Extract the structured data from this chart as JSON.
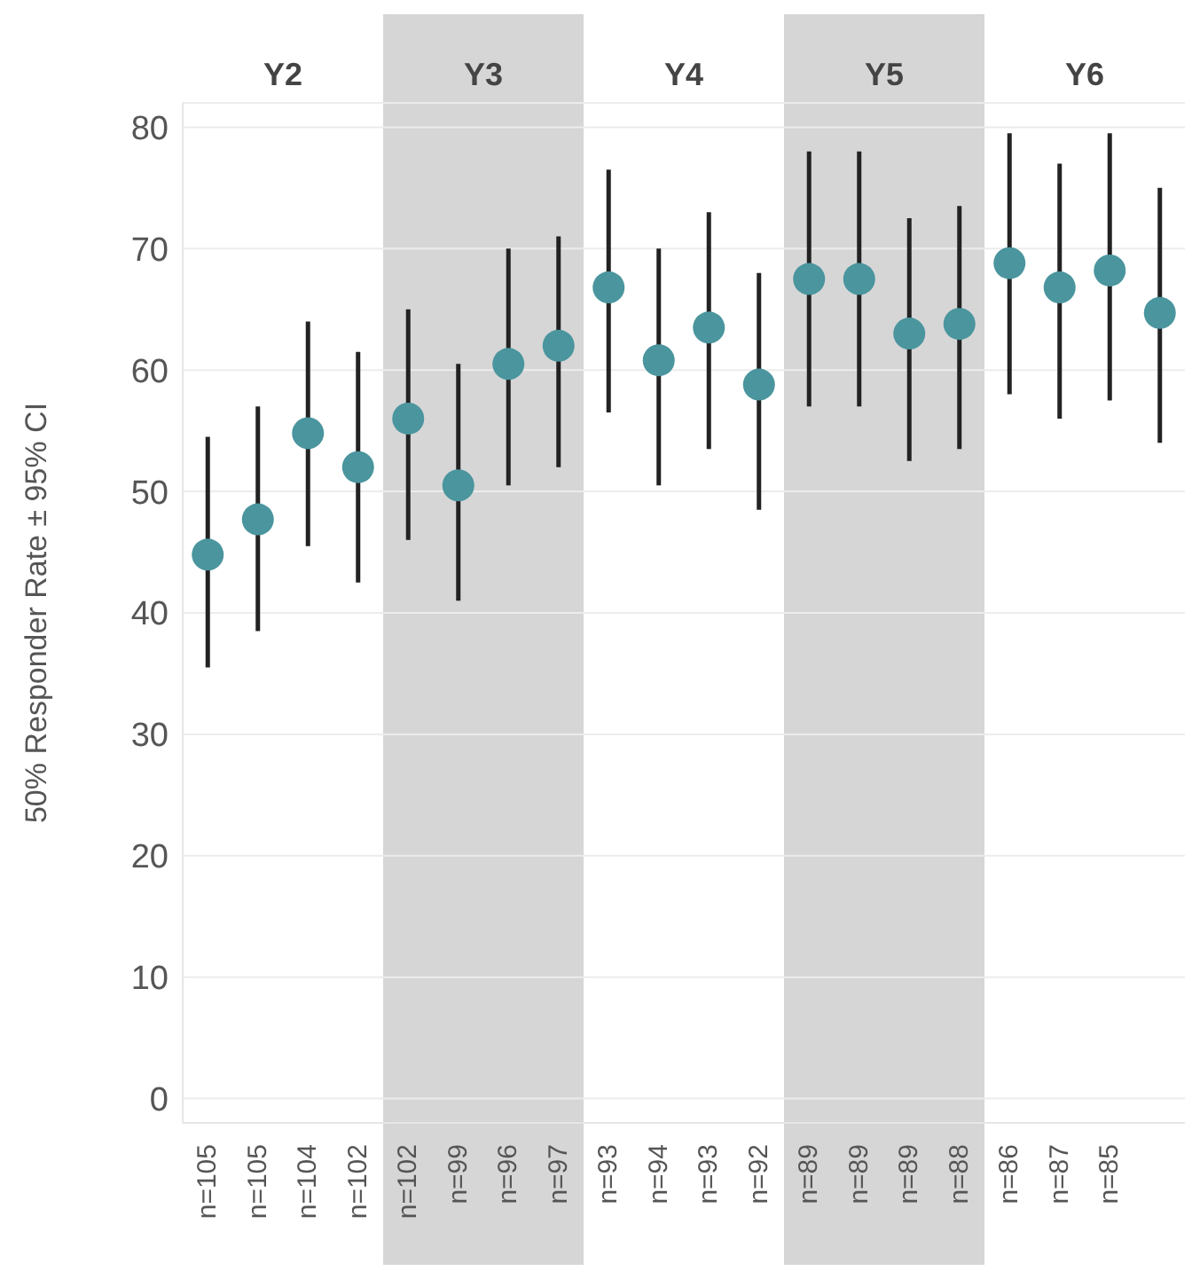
{
  "chart_data": {
    "type": "scatter",
    "ylabel": "50% Responder Rate ± 95% CI",
    "annotations": [
      "Y2",
      "Y3",
      "Y4",
      "Y5",
      "Y6"
    ],
    "categories": [
      "n=105",
      "n=105",
      "n=104",
      "n=102",
      "n=102",
      "n=99",
      "n=96",
      "n=97",
      "n=93",
      "n=94",
      "n=93",
      "n=92",
      "n=89",
      "n=89",
      "n=89",
      "n=88",
      "n=86",
      "n=87",
      "n=85",
      null
    ],
    "series": [
      {
        "color": "#4a959e",
        "values": [
          44.8,
          47.7,
          54.8,
          52,
          56,
          50.5,
          60.5,
          62,
          66.8,
          60.8,
          63.5,
          58.8,
          67.5,
          67.5,
          63,
          63.8,
          68.8,
          66.8,
          68.2,
          64.7
        ],
        "errors": [
          [
            35.5,
            54.5
          ],
          [
            38.5,
            57
          ],
          [
            45.5,
            64
          ],
          [
            42.5,
            61.5
          ],
          [
            46,
            65
          ],
          [
            41,
            60.5
          ],
          [
            50.5,
            70
          ],
          [
            52,
            71
          ],
          [
            56.5,
            76.5
          ],
          [
            50.5,
            70
          ],
          [
            53.5,
            73
          ],
          [
            48.5,
            68
          ],
          [
            57,
            78
          ],
          [
            57,
            78
          ],
          [
            52.5,
            72.5
          ],
          [
            53.5,
            73.5
          ],
          [
            58,
            79.5
          ],
          [
            56,
            77
          ],
          [
            57.5,
            79.5
          ],
          [
            54,
            75
          ]
        ]
      }
    ],
    "ylim": [
      -2,
      82
    ],
    "yticks": [
      0,
      10,
      20,
      30,
      40,
      50,
      60,
      70,
      80
    ],
    "grid": "y",
    "marker": "circle",
    "legend": false
  }
}
